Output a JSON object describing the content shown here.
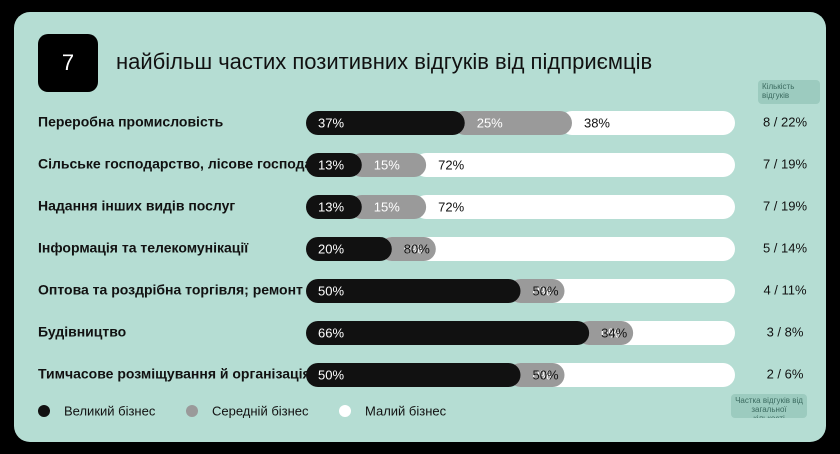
{
  "chart_data": {
    "type": "stacked_bar_horizontal",
    "badge": "7",
    "title": "найбільш частих позитивних відгуків від підприємців",
    "categories": [
      "Переробна промисловість",
      "Сільське господарство, лісове господа...",
      "Надання інших видів послуг",
      "Інформація та телекомунікації",
      "Оптова та роздрібна торгівля; ремонт ...",
      "Будівництво",
      "Тимчасове розміщування й організація..."
    ],
    "series": [
      {
        "name": "Великий бізнес",
        "color": "#111111",
        "values": [
          37,
          13,
          13,
          20,
          50,
          66,
          50
        ],
        "value_labels": [
          "37%",
          "13%",
          "13%",
          "20%",
          "50%",
          "66%",
          "50%"
        ]
      },
      {
        "name": "Середній бізнес",
        "color": "#9a9a9a",
        "values": [
          25,
          15,
          15,
          0,
          0,
          0,
          0
        ],
        "value_labels": [
          "25%",
          "15%",
          "15%",
          "0%",
          "0%",
          "0%",
          "0%"
        ]
      },
      {
        "name": "Малий бізнес",
        "color": "#ffffff",
        "values": [
          38,
          72,
          72,
          80,
          50,
          34,
          50
        ],
        "value_labels": [
          "38%",
          "72%",
          "72%",
          "80%",
          "50%",
          "34%",
          "50%"
        ]
      }
    ],
    "xlim": [
      0,
      100
    ],
    "totals": [
      "8 / 22%",
      "7 / 19%",
      "7 / 19%",
      "5 / 14%",
      "4 / 11%",
      "3 / 8%",
      "2 / 6%"
    ],
    "annotations": [
      "Кількість відгуків",
      "Частка відгуків від загальної кількості"
    ]
  }
}
